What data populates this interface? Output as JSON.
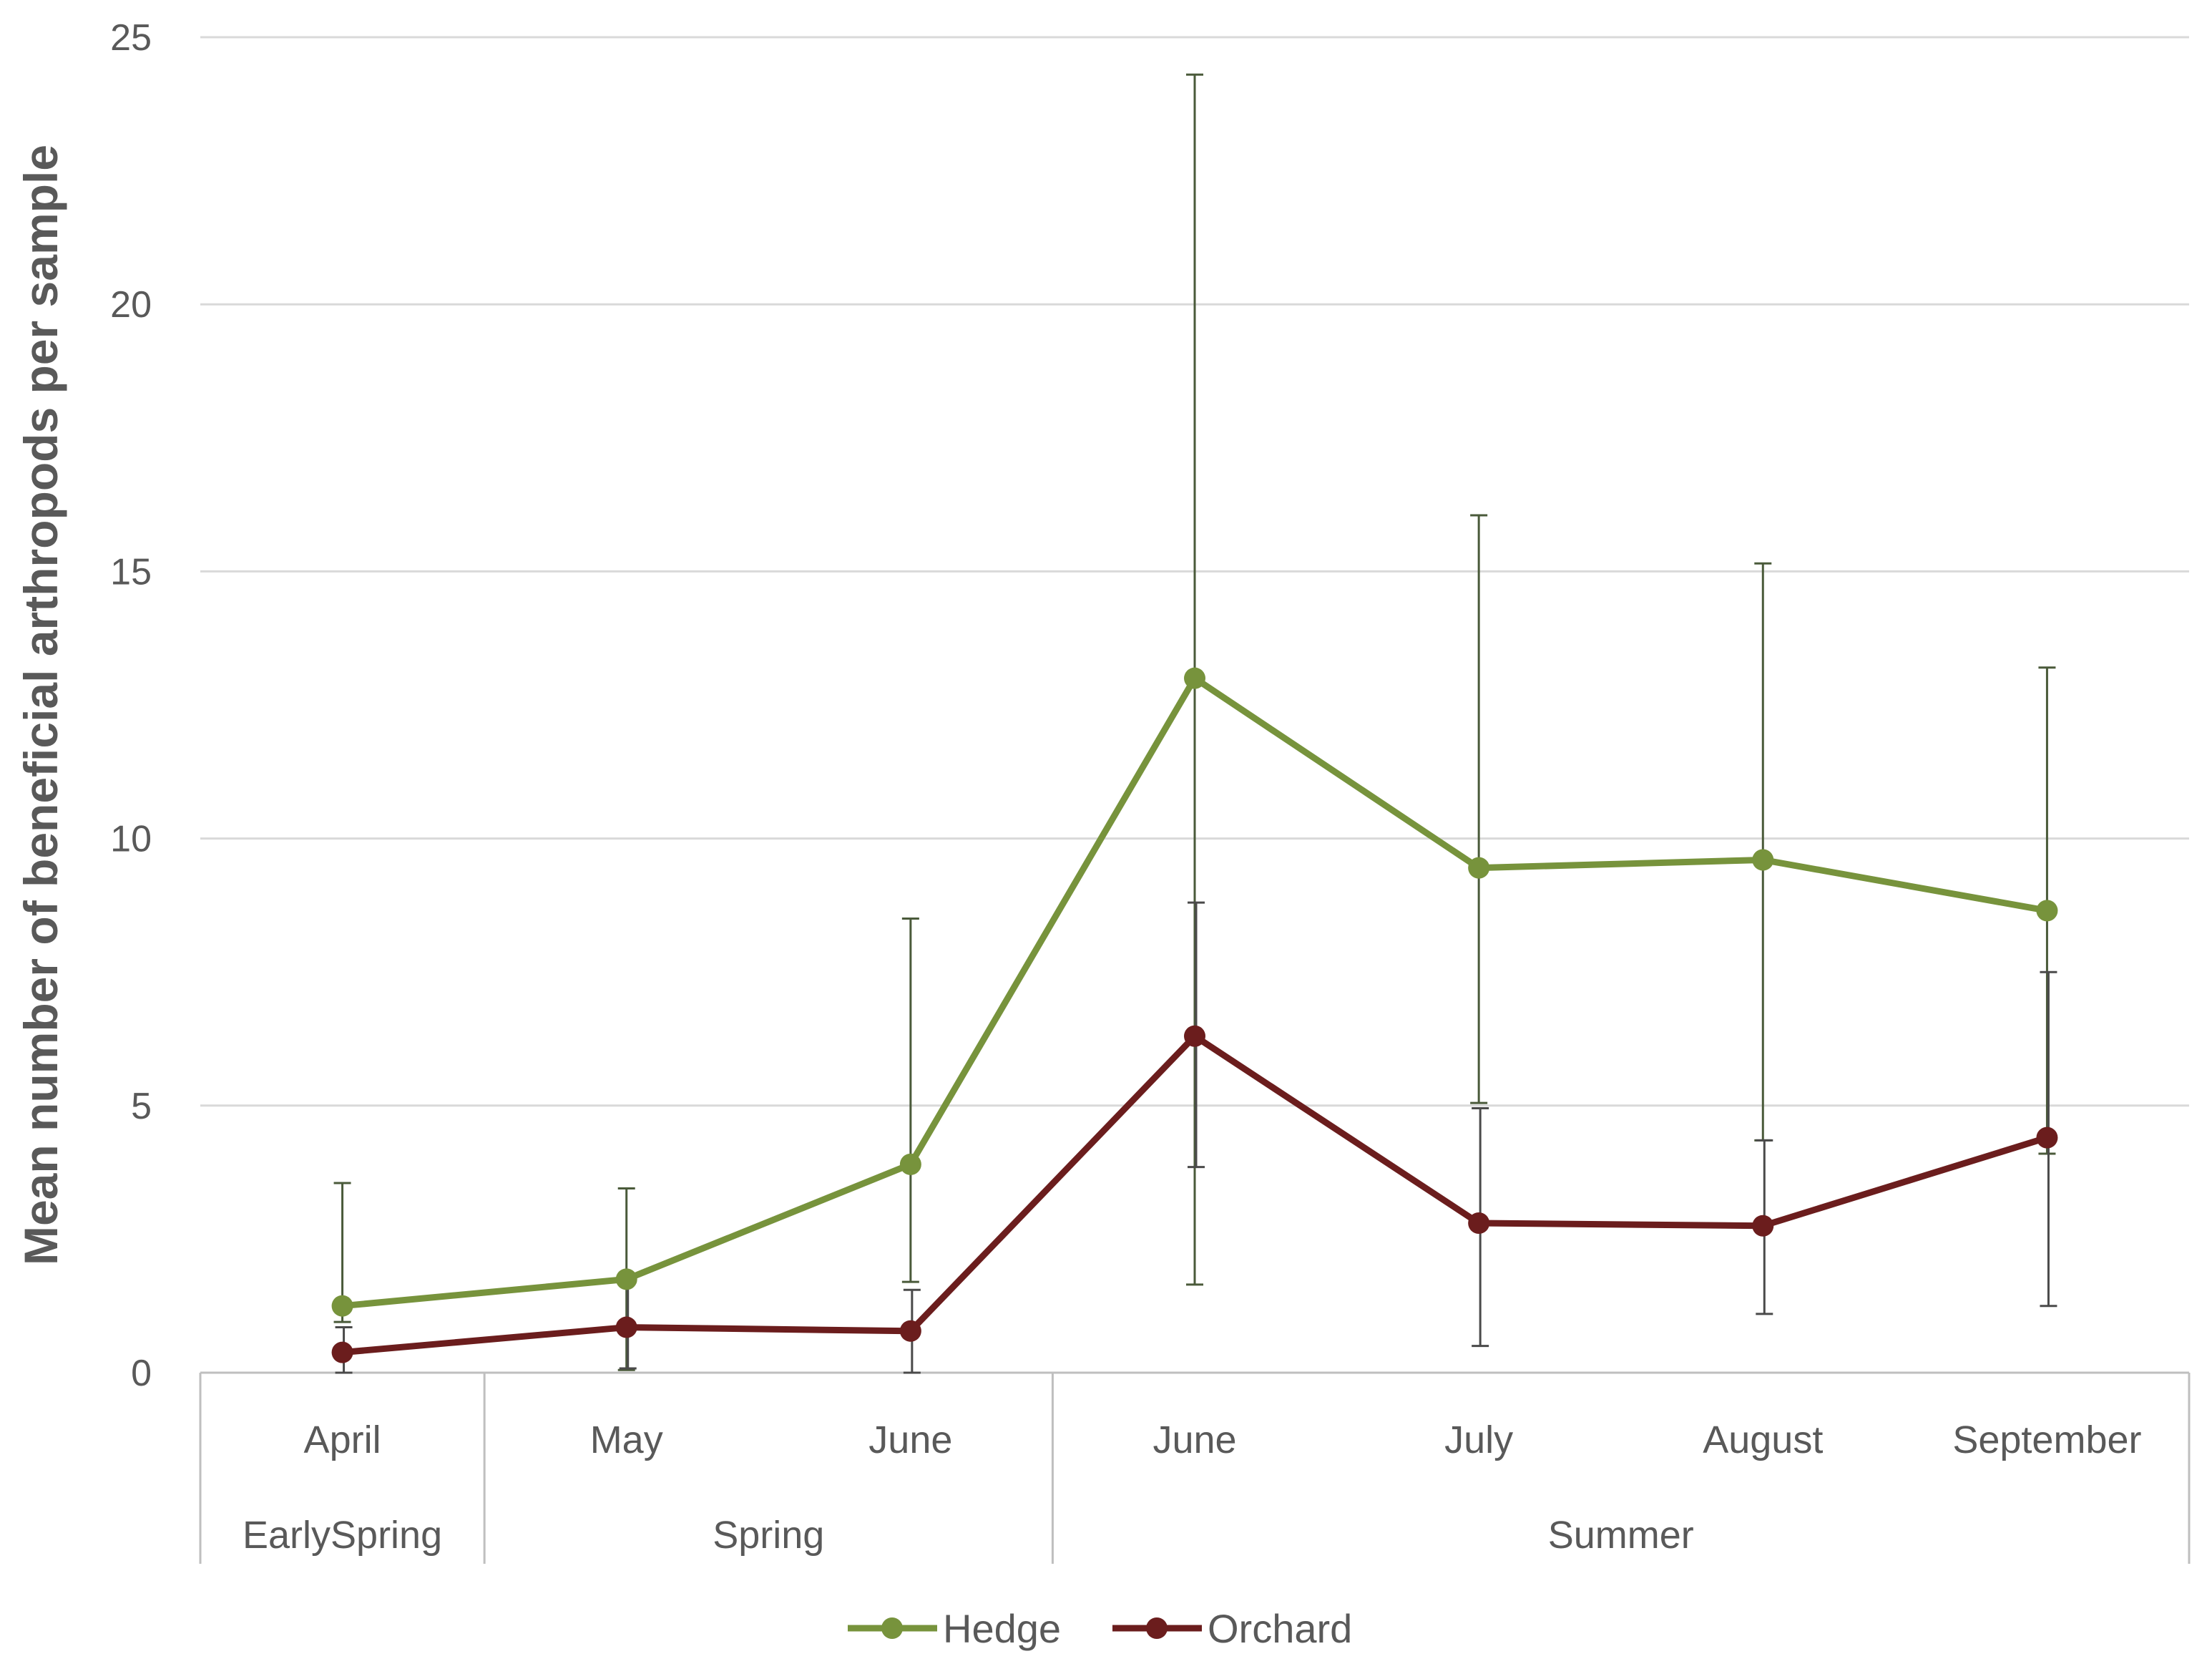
{
  "chart_data": {
    "type": "line",
    "title": "",
    "xlabel": "",
    "ylabel": "Mean number of beneficial arthropods per sample",
    "ylim": [
      0,
      25
    ],
    "yticks": [
      "0",
      "5",
      "10",
      "15",
      "20",
      "25"
    ],
    "grid": true,
    "legend": "bottom",
    "categories": [
      "April",
      "May",
      "June",
      "June",
      "July",
      "August",
      "September"
    ],
    "groups": [
      {
        "label": "EarlySpring",
        "span": [
          0,
          0
        ]
      },
      {
        "label": "Spring",
        "span": [
          1,
          2
        ]
      },
      {
        "label": "Summer",
        "span": [
          3,
          6
        ]
      }
    ],
    "series": [
      {
        "name": "Hedge",
        "color": "#77933c",
        "errorbar_color": "#4a5a3a",
        "values": [
          1.25,
          1.75,
          3.9,
          13.0,
          9.45,
          9.6,
          8.65
        ],
        "error_low": [
          0.95,
          0.05,
          1.7,
          1.65,
          5.05,
          4.35,
          4.1
        ],
        "error_high": [
          3.55,
          3.45,
          8.5,
          24.3,
          16.05,
          15.15,
          13.2
        ]
      },
      {
        "name": "Orchard",
        "color": "#6b1d1d",
        "errorbar_color": "#4a4a4a",
        "values": [
          0.38,
          0.85,
          0.78,
          6.3,
          2.8,
          2.75,
          4.4
        ],
        "error_low": [
          0.0,
          0.08,
          0.0,
          3.85,
          0.5,
          1.1,
          1.25
        ],
        "error_high": [
          0.85,
          1.7,
          1.55,
          8.8,
          4.95,
          4.35,
          7.5
        ]
      }
    ]
  }
}
